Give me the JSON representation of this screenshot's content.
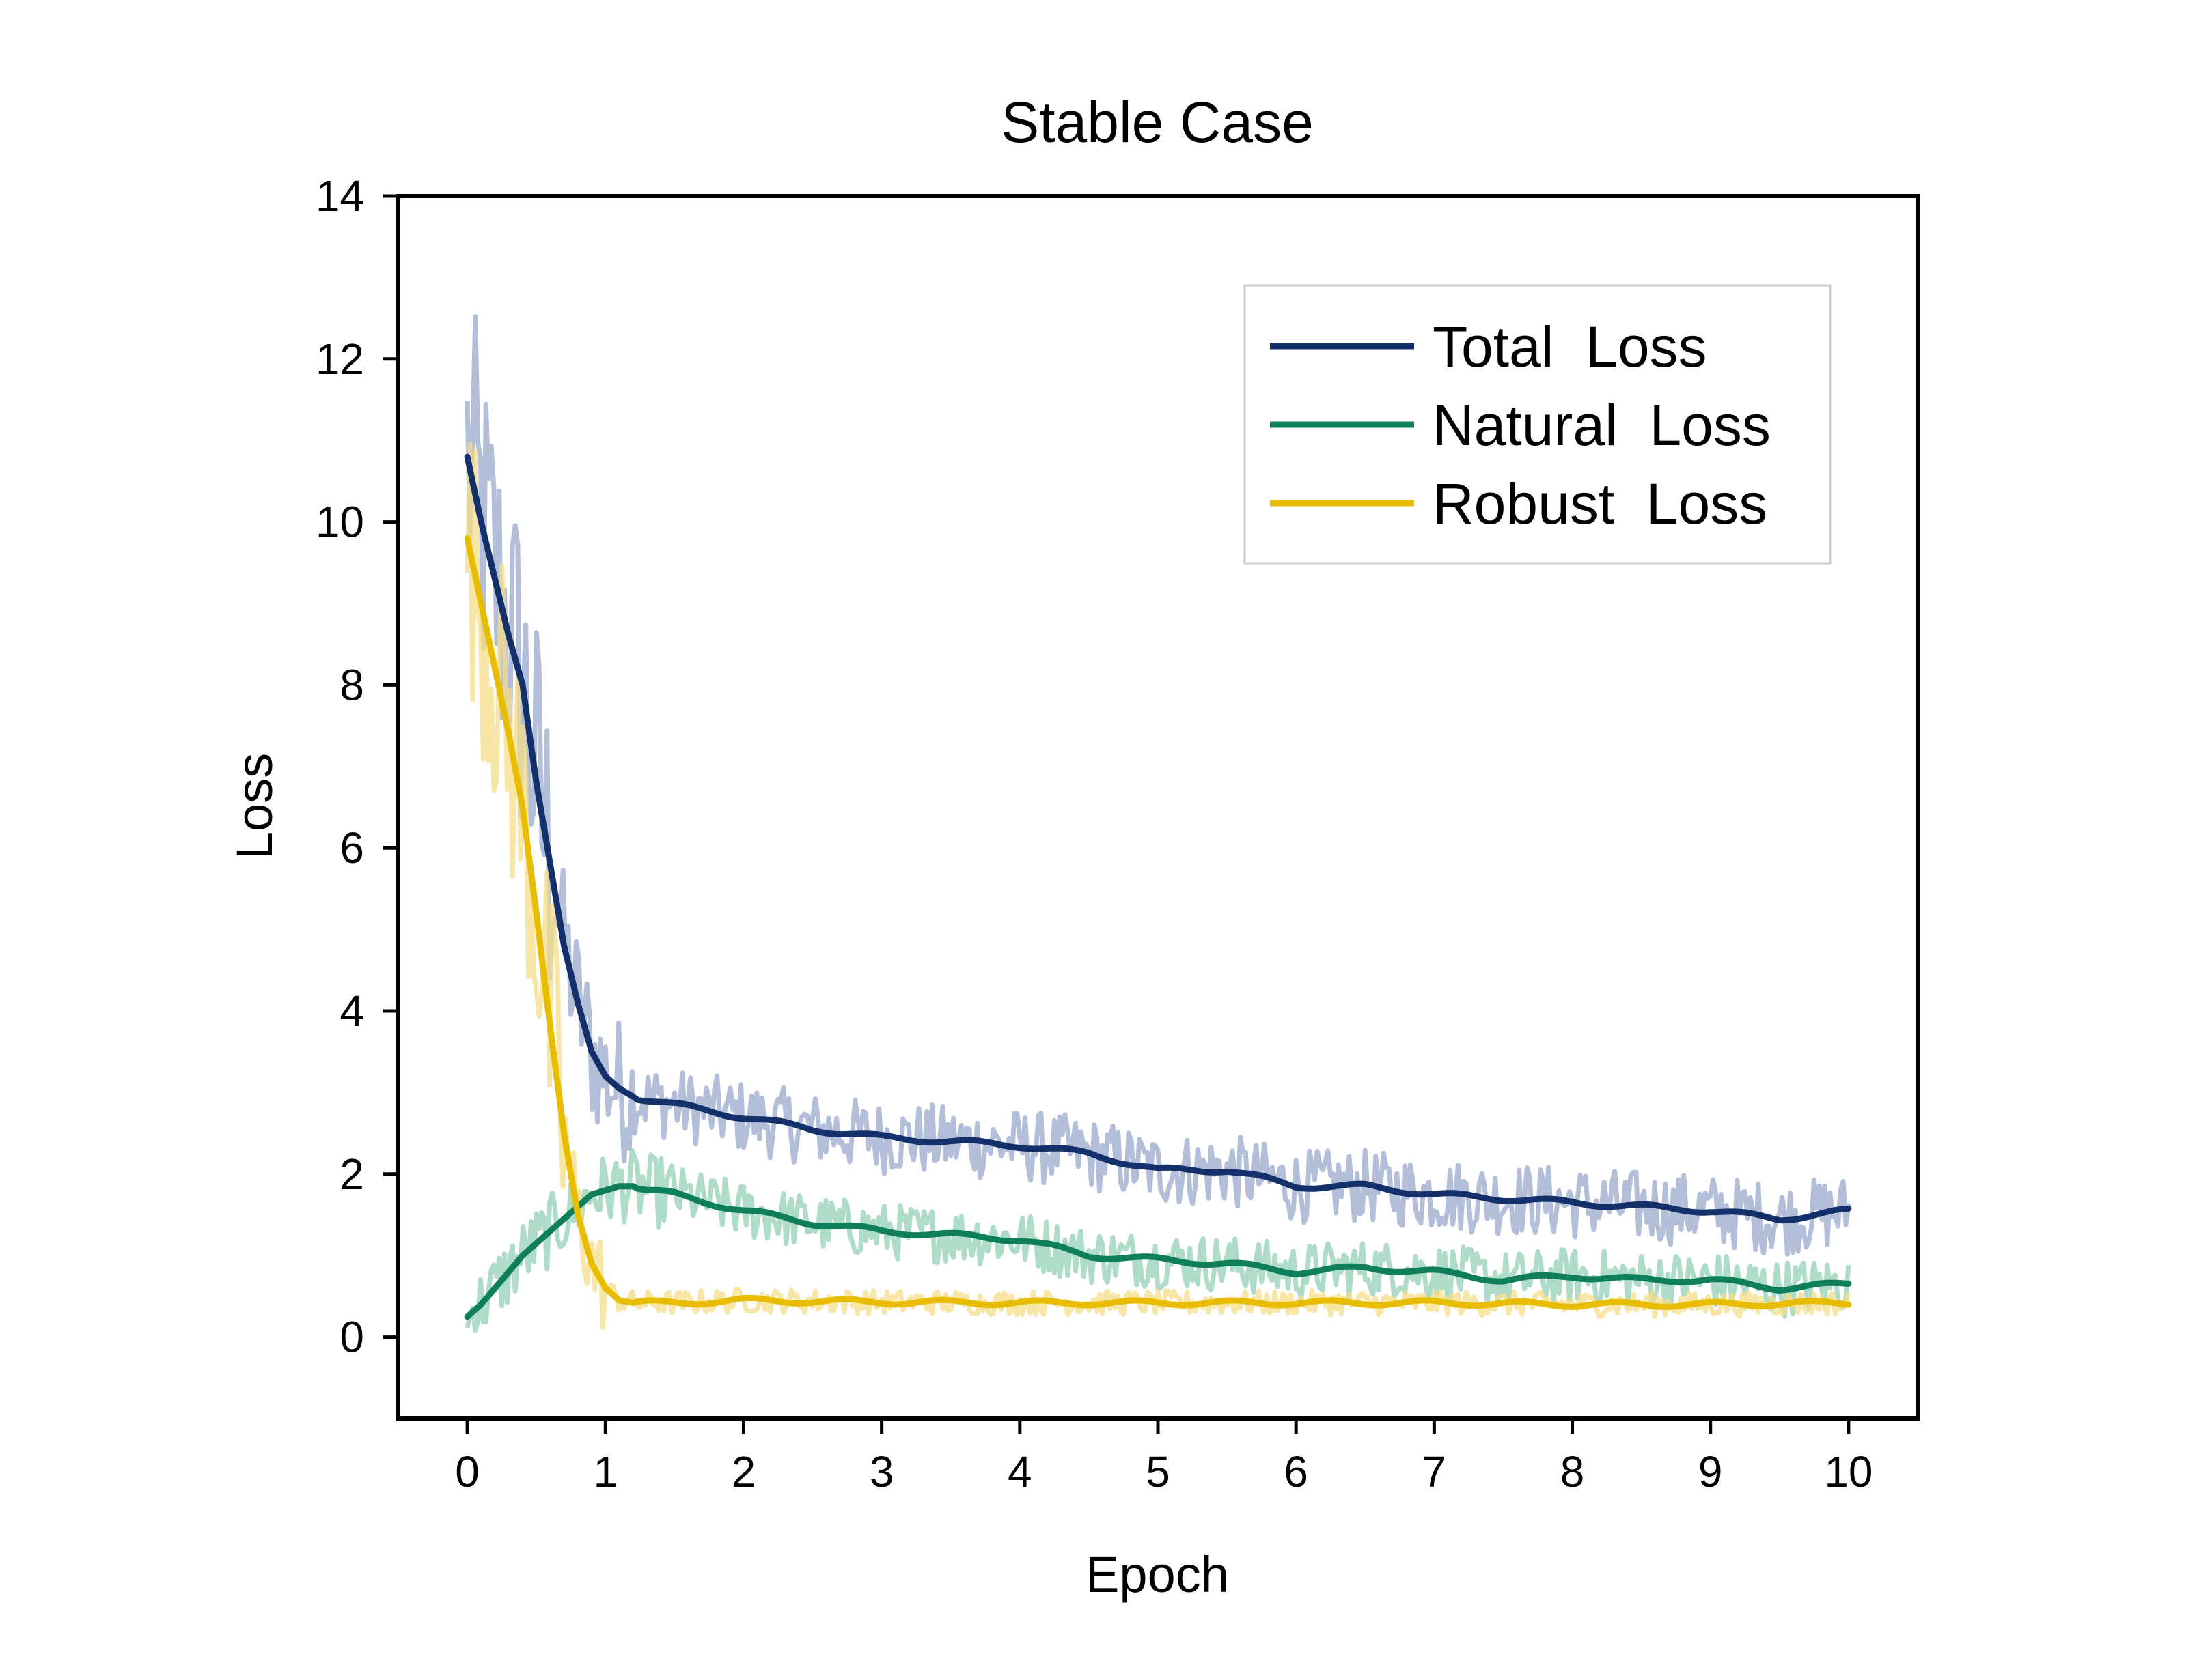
{
  "chart_data": {
    "type": "line",
    "title": "Stable Case",
    "xlabel": "Epoch",
    "ylabel": "Loss",
    "xlim": [
      -0.5,
      10.5
    ],
    "ylim": [
      -1,
      14
    ],
    "xticks": [
      0,
      1,
      2,
      3,
      4,
      5,
      6,
      7,
      8,
      9,
      10
    ],
    "yticks": [
      0,
      2,
      4,
      6,
      8,
      10,
      12,
      14
    ],
    "grid": false,
    "legend_position": "top-right",
    "series": [
      {
        "name": "Total  Loss",
        "color": "#13306b",
        "raw_color": "#9aaacb",
        "x": [
          0,
          0.1,
          0.2,
          0.3,
          0.4,
          0.5,
          0.6,
          0.7,
          0.8,
          0.9,
          1.0,
          1.1,
          1.2,
          1.5,
          2.0,
          2.5,
          3.0,
          3.5,
          4.0,
          4.5,
          5.0,
          5.5,
          6.0,
          6.5,
          7.0,
          7.5,
          8.0,
          8.5,
          9.0,
          9.5,
          10.0
        ],
        "values": [
          10.8,
          10.0,
          9.3,
          8.6,
          8.0,
          6.8,
          5.8,
          4.8,
          4.1,
          3.5,
          3.2,
          3.05,
          2.95,
          2.85,
          2.7,
          2.55,
          2.45,
          2.4,
          2.35,
          2.25,
          2.05,
          2.05,
          1.85,
          1.85,
          1.75,
          1.7,
          1.65,
          1.6,
          1.55,
          1.45,
          1.55
        ]
      },
      {
        "name": "Natural  Loss",
        "color": "#0e7f5a",
        "raw_color": "#93d0b6",
        "x": [
          0,
          0.1,
          0.2,
          0.3,
          0.4,
          0.5,
          0.6,
          0.7,
          0.8,
          0.9,
          1.0,
          1.1,
          1.2,
          1.3,
          1.5,
          2.0,
          2.5,
          3.0,
          3.5,
          4.0,
          4.5,
          5.0,
          5.5,
          6.0,
          6.5,
          7.0,
          7.5,
          8.0,
          8.5,
          9.0,
          9.5,
          10.0
        ],
        "values": [
          0.25,
          0.4,
          0.6,
          0.8,
          1.0,
          1.15,
          1.3,
          1.45,
          1.6,
          1.75,
          1.8,
          1.85,
          1.85,
          1.8,
          1.75,
          1.55,
          1.4,
          1.3,
          1.25,
          1.2,
          1.0,
          0.95,
          0.9,
          0.8,
          0.85,
          0.8,
          0.7,
          0.75,
          0.7,
          0.7,
          0.6,
          0.65
        ]
      },
      {
        "name": "Robust  Loss",
        "color": "#e8bd00",
        "raw_color": "#f6de8a",
        "x": [
          0,
          0.1,
          0.2,
          0.3,
          0.4,
          0.5,
          0.6,
          0.7,
          0.8,
          0.9,
          1.0,
          1.1,
          1.2,
          1.3,
          1.5,
          2.0,
          3.0,
          4.0,
          5.0,
          6.0,
          7.0,
          8.0,
          9.0,
          10.0
        ],
        "values": [
          9.8,
          9.0,
          8.2,
          7.4,
          6.5,
          5.2,
          3.8,
          2.5,
          1.5,
          0.9,
          0.6,
          0.45,
          0.42,
          0.42,
          0.42,
          0.45,
          0.43,
          0.42,
          0.42,
          0.42,
          0.42,
          0.4,
          0.4,
          0.42
        ]
      }
    ]
  }
}
